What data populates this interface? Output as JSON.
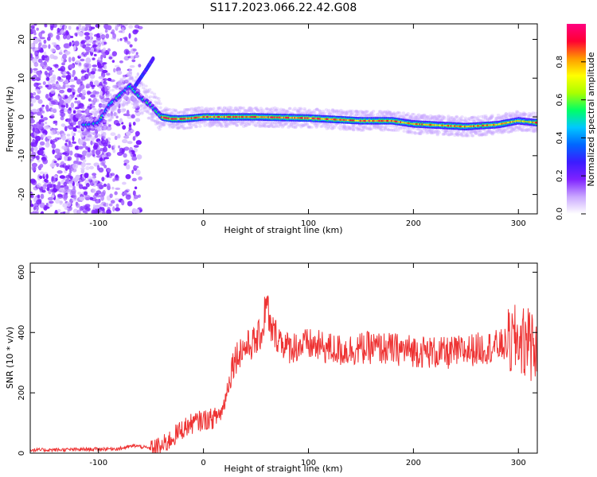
{
  "figure": {
    "title": "S117.2023.066.22.42.G08"
  },
  "chart_data": [
    {
      "type": "heatmap",
      "xlabel": "Height of straight line (km)",
      "ylabel": "Frequency (Hz)",
      "xlim": [
        -165,
        318
      ],
      "ylim": [
        -25,
        24
      ],
      "xticks": [
        -100,
        0,
        100,
        200,
        300
      ],
      "yticks": [
        -20,
        -10,
        0,
        10,
        20
      ],
      "grid": false,
      "colorbar": {
        "label": "Normalized spectral amplitude",
        "range": [
          0,
          1
        ],
        "ticks": [
          "0.0",
          "0.2",
          "0.4",
          "0.6",
          "0.8"
        ],
        "colormap": [
          "#ffffff",
          "#c9a6ff",
          "#7f22ff",
          "#3b1cff",
          "#0066ff",
          "#00c8ff",
          "#00ff66",
          "#aaff00",
          "#ffff00",
          "#ff9900",
          "#ff0033",
          "#ff0080"
        ]
      },
      "ridge": {
        "description_points": [
          {
            "x": -110,
            "y": -2
          },
          {
            "x": -100,
            "y": -1.5
          },
          {
            "x": -90,
            "y": 3
          },
          {
            "x": -80,
            "y": 5.5
          },
          {
            "x": -70,
            "y": 8
          },
          {
            "x": -60,
            "y": 5
          },
          {
            "x": -50,
            "y": 3
          },
          {
            "x": -40,
            "y": 0
          },
          {
            "x": -30,
            "y": -0.5
          },
          {
            "x": -20,
            "y": -0.5
          },
          {
            "x": -10,
            "y": -0.3
          },
          {
            "x": 0,
            "y": 0
          },
          {
            "x": 50,
            "y": 0
          },
          {
            "x": 100,
            "y": -0.3
          },
          {
            "x": 150,
            "y": -1
          },
          {
            "x": 180,
            "y": -1
          },
          {
            "x": 200,
            "y": -1.8
          },
          {
            "x": 250,
            "y": -2.5
          },
          {
            "x": 280,
            "y": -2
          },
          {
            "x": 300,
            "y": -1
          },
          {
            "x": 318,
            "y": -1.5
          }
        ],
        "branch": [
          {
            "x": -65,
            "y": 8
          },
          {
            "x": -55,
            "y": 12
          },
          {
            "x": -48,
            "y": 15
          }
        ]
      }
    },
    {
      "type": "line",
      "xlabel": "Height of straight line (km)",
      "ylabel": "SNR (10 * v/v)",
      "xlim": [
        -165,
        318
      ],
      "ylim": [
        0,
        630
      ],
      "xticks": [
        -100,
        0,
        100,
        200,
        300
      ],
      "yticks": [
        0,
        200,
        400,
        600
      ],
      "grid": false,
      "color": "#ee3333",
      "series_envelope": [
        {
          "x": -165,
          "y": 10
        },
        {
          "x": -120,
          "y": 12
        },
        {
          "x": -80,
          "y": 15
        },
        {
          "x": -65,
          "y": 25
        },
        {
          "x": -50,
          "y": 15
        },
        {
          "x": -40,
          "y": 20
        },
        {
          "x": -30,
          "y": 50
        },
        {
          "x": -20,
          "y": 80
        },
        {
          "x": -10,
          "y": 100
        },
        {
          "x": 0,
          "y": 110
        },
        {
          "x": 10,
          "y": 115
        },
        {
          "x": 18,
          "y": 140
        },
        {
          "x": 22,
          "y": 200
        },
        {
          "x": 28,
          "y": 300
        },
        {
          "x": 35,
          "y": 340
        },
        {
          "x": 50,
          "y": 370
        },
        {
          "x": 60,
          "y": 430
        },
        {
          "x": 80,
          "y": 350
        },
        {
          "x": 100,
          "y": 360
        },
        {
          "x": 130,
          "y": 340
        },
        {
          "x": 160,
          "y": 350
        },
        {
          "x": 200,
          "y": 340
        },
        {
          "x": 230,
          "y": 330
        },
        {
          "x": 260,
          "y": 345
        },
        {
          "x": 290,
          "y": 360
        },
        {
          "x": 300,
          "y": 380
        },
        {
          "x": 310,
          "y": 360
        },
        {
          "x": 318,
          "y": 340
        }
      ]
    }
  ]
}
